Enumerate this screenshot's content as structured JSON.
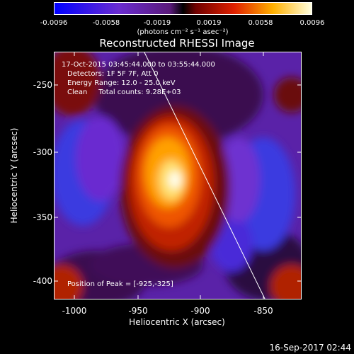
{
  "colorbar": {
    "ticks": [
      "-0.0096",
      "-0.0058",
      "-0.0019",
      "0.0019",
      "0.0058",
      "0.0096"
    ],
    "units": "(photons cm⁻² s⁻¹ asec⁻²)"
  },
  "title": "Reconstructed RHESSI Image",
  "annotations": {
    "time_range": "17-Oct-2015 03:45:44.000 to 03:55:44.000",
    "detectors": "Detectors: 1F 5F 7F, Att 0",
    "energy": "Energy Range: 12.0 - 25.0 keV",
    "clean": "Clean     Total counts: 9.28E+03",
    "peak": "Position of Peak = [-925,-325]"
  },
  "axes": {
    "xlabel": "Heliocentric X (arcsec)",
    "ylabel": "Heliocentric Y (arcsec)",
    "xticks": [
      "-1000",
      "-950",
      "-900",
      "-850"
    ],
    "yticks": [
      "-250",
      "-300",
      "-350",
      "-400"
    ]
  },
  "timestamp": "16-Sep-2017 02:44"
}
